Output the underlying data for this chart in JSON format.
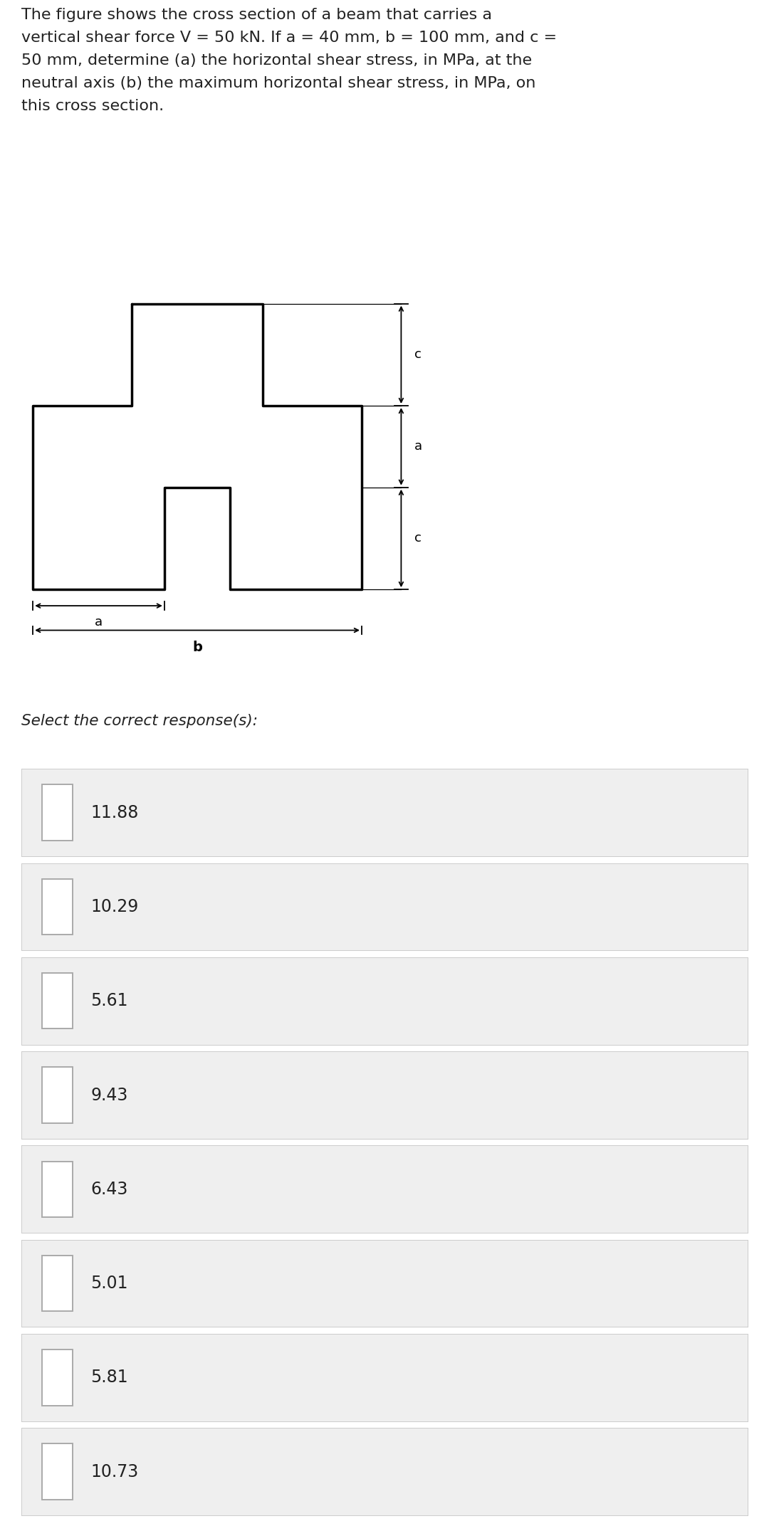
{
  "title_text": "The figure shows the cross section of a beam that carries a\nvertical shear force V = 50 kN. If a = 40 mm, b = 100 mm, and c =\n50 mm, determine (a) the horizontal shear stress, in MPa, at the\nneutral axis (b) the maximum horizontal shear stress, in MPa, on\nthis cross section.",
  "select_label": "Select the correct response(s):",
  "options": [
    "11.88",
    "10.29",
    "5.61",
    "9.43",
    "6.43",
    "5.01",
    "5.81",
    "10.73"
  ],
  "bg_color": "#ffffff",
  "option_bg": "#efefef",
  "option_border": "#cccccc",
  "text_color": "#222222",
  "title_fontsize": 16.0,
  "select_fontsize": 15.5,
  "option_fontsize": 17.0,
  "checkbox_color": "#aaaaaa",
  "dim_color": "#555555"
}
